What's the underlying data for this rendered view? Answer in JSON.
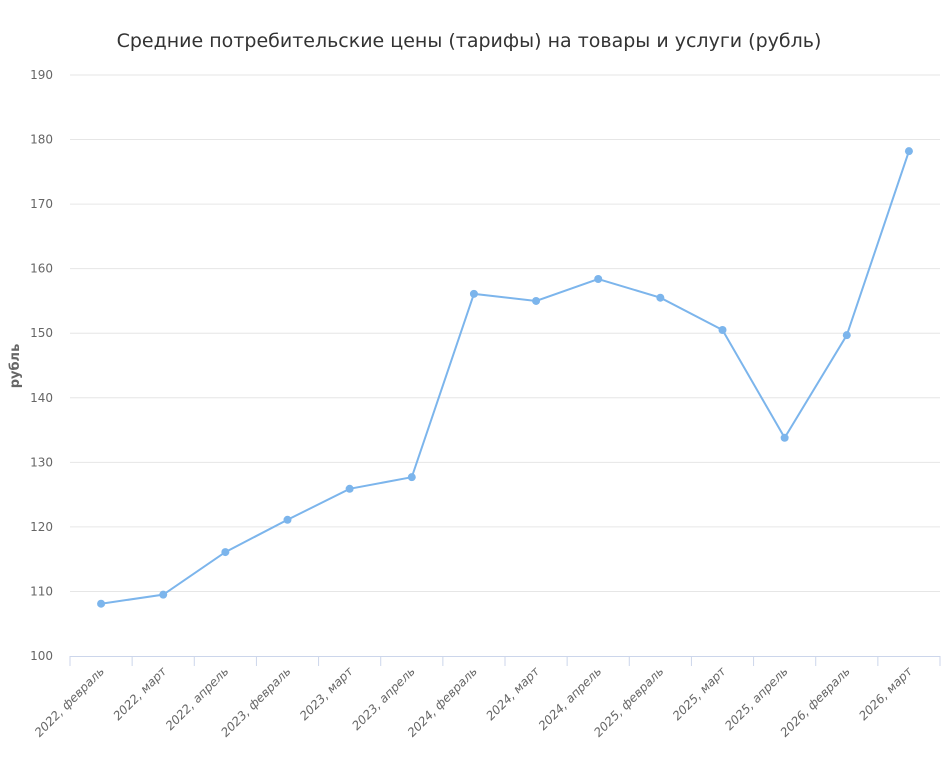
{
  "chart_data": {
    "type": "line",
    "title": "Средние потребительские цены (тарифы) на товары и услуги (рубль)",
    "xlabel": "",
    "ylabel": "рубль",
    "ylim": [
      100,
      190
    ],
    "yticks": [
      100,
      110,
      120,
      130,
      140,
      150,
      160,
      170,
      180,
      190
    ],
    "grid": true,
    "legend": "none",
    "categories": [
      "2022, февраль",
      "2022, март",
      "2022, апрель",
      "2023, февраль",
      "2023, март",
      "2023, апрель",
      "2024, февраль",
      "2024, март",
      "2024, апрель",
      "2025, февраль",
      "2025, март",
      "2025, апрель",
      "2026, февраль",
      "2026, март"
    ],
    "series": [
      {
        "values": [
          108.1,
          109.5,
          116.1,
          121.1,
          125.9,
          127.7,
          156.1,
          155.0,
          158.4,
          155.5,
          150.5,
          133.8,
          149.7,
          178.2
        ],
        "color": "#7cb5ec"
      }
    ]
  }
}
